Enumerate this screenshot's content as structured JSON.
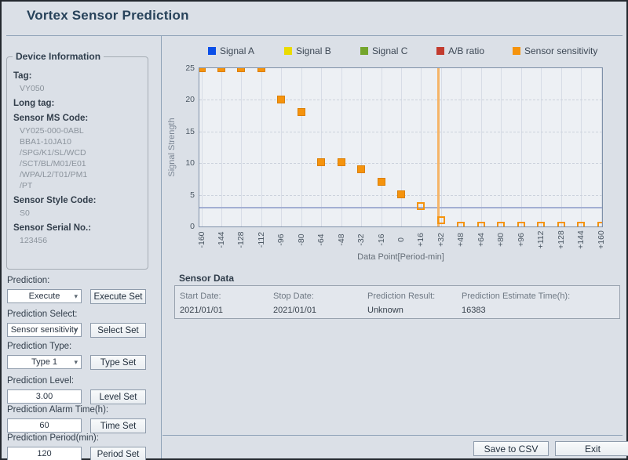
{
  "window": {
    "title": "Vortex Sensor Prediction"
  },
  "device_info": {
    "title": "Device Information",
    "fields": [
      {
        "label": "Tag:",
        "values": [
          "VY050"
        ]
      },
      {
        "label": "Long tag:",
        "values": []
      },
      {
        "label": "Sensor MS Code:",
        "values": [
          "VY025-000-0ABL",
          "BBA1-10JA10",
          "/SPG/K1/SL/WCD",
          "/SCT/BL/M01/E01",
          "/WPA/L2/T01/PM1",
          "/PT"
        ]
      },
      {
        "label": "Sensor Style Code:",
        "values": [
          "S0"
        ]
      },
      {
        "label": "Sensor Serial No.:",
        "values": [
          "123456"
        ]
      }
    ]
  },
  "controls": [
    {
      "label": "Prediction:",
      "type": "select",
      "value": "Execute",
      "button": "Execute Set",
      "name": "prediction"
    },
    {
      "label": "Prediction Select:",
      "type": "select",
      "value": "Sensor sensitivity",
      "button": "Select Set",
      "name": "prediction-select"
    },
    {
      "label": "Prediction Type:",
      "type": "select",
      "value": "Type 1",
      "button": "Type Set",
      "name": "prediction-type"
    },
    {
      "label": "Prediction Level:",
      "type": "input",
      "value": "3.00",
      "button": "Level Set",
      "name": "prediction-level"
    },
    {
      "label": "Prediction Alarm Time(h):",
      "type": "input",
      "value": "60",
      "button": "Time Set",
      "name": "prediction-alarm-time"
    },
    {
      "label": "Prediction Period(min):",
      "type": "input",
      "value": "120",
      "button": "Period Set",
      "name": "prediction-period"
    }
  ],
  "chart_data": {
    "type": "scatter",
    "xlabel": "Data Point[Period-min]",
    "ylabel": "Signal Strength",
    "xlim": [
      -160,
      160
    ],
    "ylim": [
      0,
      25
    ],
    "x_ticks": [
      "-160",
      "-144",
      "-128",
      "-112",
      "-96",
      "-80",
      "-64",
      "-48",
      "-32",
      "-16",
      "0",
      "+16",
      "+32",
      "+48",
      "+64",
      "+80",
      "+96",
      "+112",
      "+128",
      "+144",
      "+160"
    ],
    "x_tick_values": [
      -160,
      -144,
      -128,
      -112,
      -96,
      -80,
      -64,
      -48,
      -32,
      -16,
      0,
      16,
      32,
      48,
      64,
      80,
      96,
      112,
      128,
      144,
      160
    ],
    "y_ticks": [
      0,
      5,
      10,
      15,
      20,
      25
    ],
    "legend": [
      {
        "name": "Signal A",
        "color": "#0b4fe8"
      },
      {
        "name": "Signal B",
        "color": "#eadb00"
      },
      {
        "name": "Signal C",
        "color": "#74a52c"
      },
      {
        "name": "A/B ratio",
        "color": "#c23b2e"
      },
      {
        "name": "Sensor sensitivity",
        "color": "#f5930d"
      }
    ],
    "series": [
      {
        "name": "Sensor sensitivity",
        "marker": "square",
        "color": "#f5930d",
        "points_measured": [
          [
            -160,
            25
          ],
          [
            -144,
            25
          ],
          [
            -128,
            25
          ],
          [
            -112,
            25
          ],
          [
            -96,
            20
          ],
          [
            -80,
            18.1
          ],
          [
            -64,
            10.2
          ],
          [
            -48,
            10.2
          ],
          [
            -32,
            9
          ],
          [
            -16,
            7
          ],
          [
            0,
            5.1
          ]
        ],
        "points_predicted": [
          [
            16,
            3.2
          ],
          [
            32,
            1
          ],
          [
            48,
            0.15
          ],
          [
            64,
            0.15
          ],
          [
            80,
            0.15
          ],
          [
            96,
            0.15
          ],
          [
            112,
            0.15
          ],
          [
            128,
            0.15
          ],
          [
            144,
            0.15
          ],
          [
            160,
            0.15
          ]
        ]
      }
    ],
    "threshold_line_y": 3,
    "threshold_color": "#a3afd2",
    "marker_line_x": 30,
    "marker_line_color": "#f5b468",
    "grid": true,
    "legend_position": "top"
  },
  "sensor_data": {
    "title": "Sensor Data",
    "columns": [
      {
        "label": "Start Date:",
        "value": "2021/01/01"
      },
      {
        "label": "Stop Date:",
        "value": "2021/01/01"
      },
      {
        "label": "Prediction Result:",
        "value": "Unknown"
      },
      {
        "label": "Prediction Estimate Time(h):",
        "value": "16383"
      }
    ]
  },
  "footer": {
    "save_button": "Save to CSV",
    "exit_button": "Exit"
  }
}
